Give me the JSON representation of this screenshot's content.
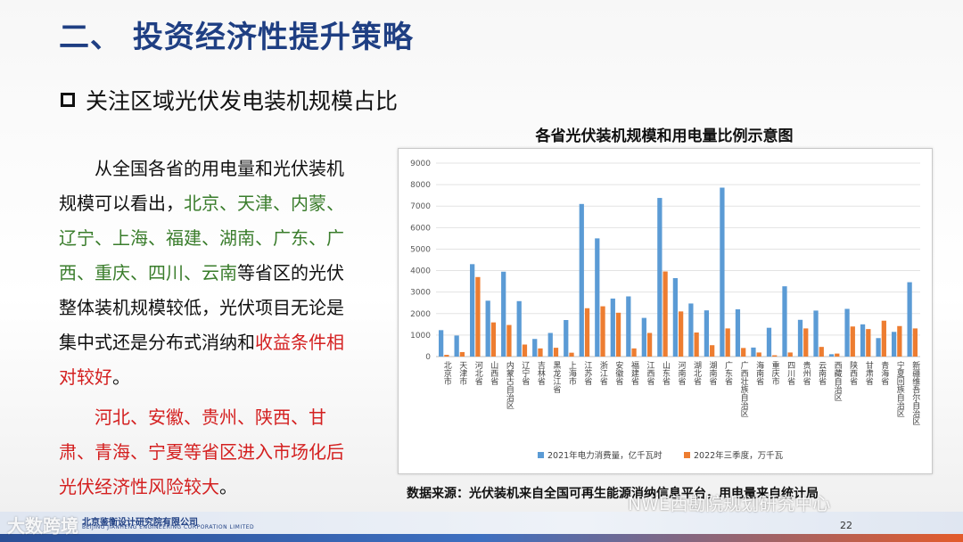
{
  "slide": {
    "title": "二、 投资经济性提升策略",
    "bullet": "关注区域光伏发电装机规模占比",
    "para1": {
      "prefix": "从全国各省的用电量和光伏装机规模可以看出，",
      "green": "北京、天津、内蒙、辽宁、上海、福建、湖南、广东、广西、重庆、四川、云南",
      "middle": "等省区的光伏整体装机规模较低，光伏项目无论是集中式还是分布式消纳和",
      "red": "收益条件相对较好",
      "suffix": "。"
    },
    "para2": {
      "red": "河北、安徽、贵州、陕西、甘肃、青海、宁夏等省区进入市场化后光伏经济性风险较大",
      "suffix": "。"
    },
    "source": "数据来源：光伏装机来自全国可再生能源消纳信息平台，用电量来自统计局",
    "page_number": "22",
    "company_cn": "北京鉴衡设计研究院有限公司",
    "company_en": "BEIJING JIANHENG ENGINEERING CORPORATION LIMITED",
    "watermark_left": "大数跨境",
    "watermark_right": "NWE西勘院规划研究中心"
  },
  "colors": {
    "title": "#1f3f83",
    "series1": "#5b9bd5",
    "series2": "#ed7d31",
    "green": "#3a7d2c",
    "red": "#d42020"
  },
  "chart_data": {
    "type": "bar",
    "title": "各省光伏装机规模和用电量比例示意图",
    "ylim": [
      0,
      9000
    ],
    "yticks": [
      0,
      1000,
      2000,
      3000,
      4000,
      5000,
      6000,
      7000,
      8000,
      9000
    ],
    "grid": true,
    "legend_position": "bottom",
    "categories": [
      "北京市",
      "天津市",
      "河北省",
      "山西省",
      "内蒙古自治区",
      "辽宁省",
      "吉林省",
      "黑龙江省",
      "上海市",
      "江苏省",
      "浙江省",
      "安徽省",
      "福建省",
      "江西省",
      "山东省",
      "河南省",
      "湖北省",
      "湖南省",
      "广东省",
      "广西壮族自治区",
      "海南省",
      "重庆市",
      "四川省",
      "贵州省",
      "云南省",
      "西藏自治区",
      "陕西省",
      "甘肃省",
      "青海省",
      "宁夏回族自治区",
      "新疆维吾尔自治区"
    ],
    "series": [
      {
        "name": "2021年电力消费量，亿千瓦时",
        "values": [
          1230,
          980,
          4300,
          2600,
          3950,
          2580,
          820,
          1100,
          1700,
          7100,
          5500,
          2700,
          2800,
          1800,
          7380,
          3650,
          2470,
          2150,
          7860,
          2200,
          420,
          1340,
          3270,
          1710,
          2140,
          110,
          2220,
          1500,
          860,
          1150,
          3460
        ]
      },
      {
        "name": "2022年三季度，万千瓦",
        "values": [
          80,
          210,
          3700,
          1590,
          1470,
          560,
          380,
          410,
          180,
          2250,
          2340,
          2040,
          380,
          1100,
          3960,
          2100,
          1120,
          530,
          1310,
          400,
          190,
          60,
          190,
          1310,
          450,
          140,
          1400,
          1280,
          1670,
          1420,
          1310
        ]
      }
    ]
  }
}
